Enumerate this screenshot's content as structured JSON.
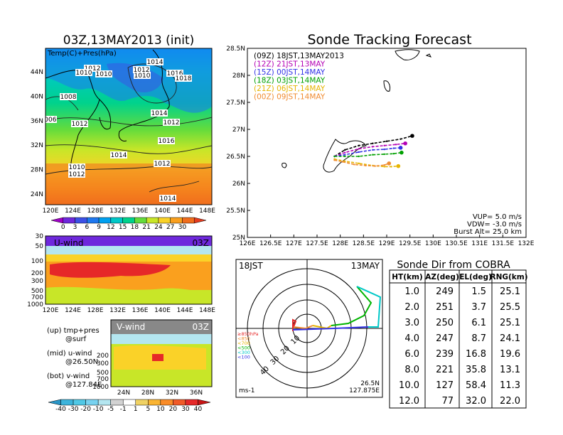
{
  "left": {
    "title": "03Z,13MAY2013 (init)",
    "map": {
      "label": "Temp(C)+Pres(hPa)",
      "lat_labels": [
        "44N",
        "40N",
        "36N",
        "32N",
        "28N",
        "24N"
      ],
      "lon_labels": [
        "120E",
        "124E",
        "128E",
        "132E",
        "136E",
        "140E",
        "144E",
        "148E"
      ],
      "isobars": [
        "1012",
        "1010",
        "1010",
        "1014",
        "1012",
        "1010",
        "1016",
        "1018",
        "1008",
        "1006",
        "1012",
        "1014",
        "1012",
        "1016",
        "1014",
        "1012",
        "1010",
        "1012",
        "1014"
      ],
      "colorbar_ticks": [
        "0",
        "3",
        "6",
        "9",
        "12",
        "15",
        "18",
        "21",
        "24",
        "27",
        "30"
      ],
      "colorbar_colors": [
        "#a000c8",
        "#6e28dc",
        "#3c50e6",
        "#1e78f0",
        "#00a0f0",
        "#00c8c8",
        "#00d28c",
        "#64dc3c",
        "#c8e628",
        "#fad228",
        "#faa01e",
        "#f06e1e",
        "#e63c1e"
      ]
    },
    "uwind": {
      "label": "U-wind",
      "time": "03Z",
      "y_ticks": [
        "30",
        "50",
        "100",
        "200",
        "300",
        "500",
        "700",
        "1000"
      ],
      "x_ticks": [
        "120E",
        "124E",
        "128E",
        "132E",
        "136E",
        "140E",
        "144E",
        "148E"
      ]
    },
    "vwind": {
      "label": "V-wind",
      "time": "03Z",
      "y_ticks": [
        "200",
        "300",
        "500",
        "700",
        "1000"
      ],
      "x_ticks": [
        "24N",
        "28N",
        "32N",
        "36N"
      ]
    },
    "notes": [
      {
        "tag": "(up) tmp+pres",
        "sub": "@surf"
      },
      {
        "tag": "(mid) u-wind",
        "sub": "@26.50N"
      },
      {
        "tag": "(bot) v-wind",
        "sub": "@127.84E"
      }
    ],
    "wind_colorbar_ticks": [
      "-40",
      "-30",
      "-20",
      "-10",
      "-5",
      "-1",
      "1",
      "5",
      "10",
      "20",
      "30",
      "40"
    ],
    "wind_colorbar_colors": [
      "#2896c8",
      "#3cb4dc",
      "#50c8e6",
      "#78d2f0",
      "#b4e6f0",
      "#d2d2d2",
      "#ffffff",
      "#f0d264",
      "#fab432",
      "#fa8c28",
      "#f05a28",
      "#e62828",
      "#c81414"
    ]
  },
  "main": {
    "title": "Sonde Tracking Forecast",
    "legend": [
      {
        "label": "(09Z)  18JST,13MAY2013",
        "color": "#000000"
      },
      {
        "label": "(12Z)  21JST,13MAY",
        "color": "#b400b4"
      },
      {
        "label": "(15Z)  00JST,14MAY",
        "color": "#3232e6"
      },
      {
        "label": "(18Z)  03JST,14MAY",
        "color": "#00a000"
      },
      {
        "label": "(21Z)  06JST,14MAY",
        "color": "#e6b400"
      },
      {
        "label": "(00Z)  09JST,14MAY",
        "color": "#f08c32"
      }
    ],
    "info": [
      "VUP=  5.0  m/s",
      "VDW= -3.0  m/s",
      "Burst Alt=  25.0  km"
    ]
  },
  "chart_data": [
    {
      "type": "line",
      "title": "Sonde Tracking Forecast",
      "xlim": [
        126,
        132
      ],
      "ylim": [
        25,
        28.5
      ],
      "x_ticks": [
        "126E",
        "126.5E",
        "127E",
        "127.5E",
        "128E",
        "128.5E",
        "129E",
        "129.5E",
        "130E",
        "130.5E",
        "131E",
        "131.5E",
        "132E"
      ],
      "y_ticks": [
        "25N",
        "25.5N",
        "26N",
        "26.5N",
        "27N",
        "27.5N",
        "28N",
        "28.5N"
      ],
      "series": [
        {
          "name": "(09Z) 18JST,13MAY2013",
          "color": "#000000",
          "x": [
            127.875,
            128.1,
            128.4,
            128.7,
            129.0,
            129.3,
            129.55
          ],
          "y": [
            26.5,
            26.62,
            26.7,
            26.74,
            26.78,
            26.82,
            26.88
          ]
        },
        {
          "name": "(12Z) 21JST,13MAY",
          "color": "#b400b4",
          "x": [
            127.875,
            128.1,
            128.4,
            128.7,
            128.95,
            129.2,
            129.4
          ],
          "y": [
            26.5,
            26.57,
            26.64,
            26.68,
            26.7,
            26.72,
            26.74
          ]
        },
        {
          "name": "(15Z) 00JST,14MAY",
          "color": "#3232e6",
          "x": [
            127.875,
            128.1,
            128.4,
            128.7,
            128.95,
            129.15,
            129.3
          ],
          "y": [
            26.5,
            26.53,
            26.58,
            26.62,
            26.63,
            26.65,
            26.66
          ]
        },
        {
          "name": "(18Z) 03JST,14MAY",
          "color": "#00a000",
          "x": [
            127.875,
            128.1,
            128.4,
            128.7,
            128.95,
            129.15,
            129.32
          ],
          "y": [
            26.5,
            26.5,
            26.5,
            26.53,
            26.54,
            26.55,
            26.57
          ]
        },
        {
          "name": "(21Z) 06JST,14MAY",
          "color": "#e6b400",
          "x": [
            127.875,
            128.1,
            128.4,
            128.7,
            128.95,
            129.1,
            129.25
          ],
          "y": [
            26.45,
            26.41,
            26.37,
            26.33,
            26.31,
            26.31,
            26.32
          ]
        },
        {
          "name": "(00Z) 09JST,14MAY",
          "color": "#f08c32",
          "x": [
            127.875,
            128.05,
            128.3,
            128.55,
            128.75,
            128.95,
            129.05
          ],
          "y": [
            26.43,
            26.4,
            26.35,
            26.33,
            26.32,
            26.34,
            26.37
          ]
        }
      ]
    },
    {
      "type": "table",
      "title": "Sonde Dir from COBRA",
      "columns": [
        "HT(km)",
        "AZ(deg)",
        "EL(deg)",
        "RNG(km)"
      ],
      "rows": [
        [
          "1.0",
          "249",
          "1.5",
          "25.1"
        ],
        [
          "2.0",
          "251",
          "3.7",
          "25.5"
        ],
        [
          "3.0",
          "250",
          "6.1",
          "25.1"
        ],
        [
          "4.0",
          "247",
          "8.7",
          "24.1"
        ],
        [
          "6.0",
          "239",
          "16.8",
          "19.6"
        ],
        [
          "8.0",
          "221",
          "35.8",
          "13.1"
        ],
        [
          "10.0",
          "127",
          "58.4",
          "11.3"
        ],
        [
          "12.0",
          "77",
          "32.0",
          "22.0"
        ]
      ]
    }
  ],
  "polar": {
    "top_left": "18JST",
    "top_right": "13MAY",
    "unit": "ms-1",
    "ring_labels": [
      "10",
      "20",
      "30",
      "40"
    ],
    "loc_lat": "26.5N",
    "loc_lon": "127.875E",
    "levels": [
      {
        "label": "≥850hPa",
        "color": "#e62828"
      },
      {
        "label": "<850",
        "color": "#f08c32"
      },
      {
        "label": "<700",
        "color": "#e6b400"
      },
      {
        "label": "<500",
        "color": "#00b400"
      },
      {
        "label": "<300",
        "color": "#00c8c8"
      },
      {
        "label": "<100",
        "color": "#3232e6"
      }
    ]
  }
}
